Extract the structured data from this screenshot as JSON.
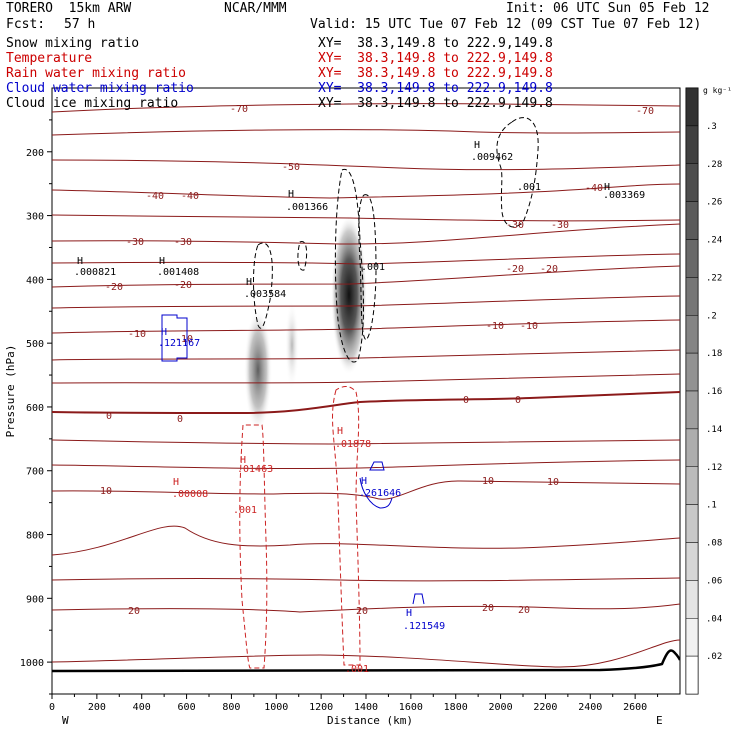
{
  "header": {
    "model": "TORERO  15km ARW",
    "org": "NCAR/MMM",
    "init": "Init: 06 UTC Sun 05 Feb 12",
    "fcst_label": "Fcst:",
    "fcst_value": "57 h",
    "valid": "Valid: 15 UTC Tue 07 Feb 12 (09 CST Tue 07 Feb 12)"
  },
  "fields": [
    {
      "name": "Snow mixing ratio",
      "color": "#000000",
      "xy": "XY=  38.3,149.8 to 222.9,149.8"
    },
    {
      "name": "Temperature",
      "color": "#cc0000",
      "xy": "XY=  38.3,149.8 to 222.9,149.8"
    },
    {
      "name": "Rain water mixing ratio",
      "color": "#cc0000",
      "xy": "XY=  38.3,149.8 to 222.9,149.8"
    },
    {
      "name": "Cloud water mixing ratio",
      "color": "#0000cc",
      "xy": "XY=  38.3,149.8 to 222.9,149.8"
    },
    {
      "name": "Cloud ice mixing ratio",
      "color": "#000000",
      "xy": "XY=  38.3,149.8 to 222.9,149.8"
    }
  ],
  "chart_data": {
    "type": "heatmap",
    "xlabel": "Distance (km)",
    "ylabel": "Pressure (hPa)",
    "xlim": [
      0,
      2800
    ],
    "ylim": [
      1050,
      100
    ],
    "x_ticks": [
      "0",
      "200",
      "400",
      "600",
      "800",
      "1000",
      "1200",
      "1400",
      "1600",
      "1800",
      "2000",
      "2200",
      "2400",
      "2600"
    ],
    "y_ticks": [
      "200",
      "300",
      "400",
      "500",
      "600",
      "700",
      "800",
      "900",
      "1000"
    ],
    "x_tick_values": [
      0,
      200,
      400,
      600,
      800,
      1000,
      1200,
      1400,
      1600,
      1800,
      2000,
      2200,
      2400,
      2600
    ],
    "y_tick_values": [
      200,
      300,
      400,
      500,
      600,
      700,
      800,
      900,
      1000
    ],
    "west_label": "W",
    "east_label": "E",
    "colorbar": {
      "unit": "g kg⁻¹",
      "labels": [
        ".3",
        ".28",
        ".26",
        ".24",
        ".22",
        ".2",
        ".18",
        ".16",
        ".14",
        ".12",
        ".1",
        ".08",
        ".06",
        ".04",
        ".02"
      ],
      "values": [
        0.3,
        0.28,
        0.26,
        0.24,
        0.22,
        0.2,
        0.18,
        0.16,
        0.14,
        0.12,
        0.1,
        0.08,
        0.06,
        0.04,
        0.02
      ]
    },
    "temperature_isotherms_C": [
      {
        "value": -70,
        "label": "-70"
      },
      {
        "value": -50,
        "label": "-50"
      },
      {
        "value": -40,
        "label": "-40"
      },
      {
        "value": -30,
        "label": "-30"
      },
      {
        "value": -20,
        "label": "-20"
      },
      {
        "value": -10,
        "label": "-10"
      },
      {
        "value": 0,
        "label": "0"
      },
      {
        "value": 10,
        "label": "10"
      },
      {
        "value": 20,
        "label": "20"
      }
    ],
    "snow_shading_maxima": [
      {
        "x": 900,
        "p": 540,
        "value": 0.14
      },
      {
        "x": 1080,
        "p": 520,
        "value": 0.06
      },
      {
        "x": 1300,
        "p": 430,
        "value": 0.28
      }
    ],
    "annotations": [
      {
        "text": ".000821",
        "x": 140,
        "p": 393,
        "color": "#000000",
        "field": "Cloud ice mixing ratio"
      },
      {
        "text": ".001408",
        "x": 560,
        "p": 393,
        "color": "#000000",
        "field": "Cloud ice mixing ratio"
      },
      {
        "text": ".003584",
        "x": 930,
        "p": 423,
        "color": "#000000",
        "field": "Cloud ice mixing ratio"
      },
      {
        "text": ".001366",
        "x": 1130,
        "p": 290,
        "color": "#000000",
        "field": "Cloud ice mixing ratio"
      },
      {
        "text": ".009462",
        "x": 2010,
        "p": 203,
        "color": "#000000",
        "field": "Cloud ice mixing ratio"
      },
      {
        "text": ".003369",
        "x": 2580,
        "p": 267,
        "color": "#000000",
        "field": "Cloud ice mixing ratio"
      },
      {
        "text": ".001",
        "x": 2080,
        "p": 262,
        "color": "#000000",
        "field": "Cloud ice mixing ratio"
      },
      {
        "text": ".001",
        "x": 1380,
        "p": 390,
        "color": "#000000",
        "field": "Cloud ice mixing ratio"
      },
      {
        "text": ".121167",
        "x": 540,
        "p": 508,
        "color": "#0000cc",
        "field": "Cloud water mixing ratio"
      },
      {
        "text": ".261646",
        "x": 1430,
        "p": 750,
        "color": "#0000cc",
        "field": "Cloud water mixing ratio"
      },
      {
        "text": ".121549",
        "x": 1640,
        "p": 927,
        "color": "#0000cc",
        "field": "Cloud water mixing ratio"
      },
      {
        "text": ".01463",
        "x": 910,
        "p": 703,
        "color": "#cc0000",
        "field": "Rain water mixing ratio"
      },
      {
        "text": ".01878",
        "x": 1330,
        "p": 663,
        "color": "#cc0000",
        "field": "Rain water mixing ratio"
      },
      {
        "text": ".00008",
        "x": 610,
        "p": 736,
        "color": "#cc0000",
        "field": "Rain water mixing ratio"
      },
      {
        "text": ".001",
        "x": 860,
        "p": 780,
        "color": "#cc0000",
        "field": "Rain water mixing ratio"
      },
      {
        "text": ".001",
        "x": 1340,
        "p": 1005,
        "color": "#cc0000",
        "field": "Rain water mixing ratio"
      }
    ]
  }
}
